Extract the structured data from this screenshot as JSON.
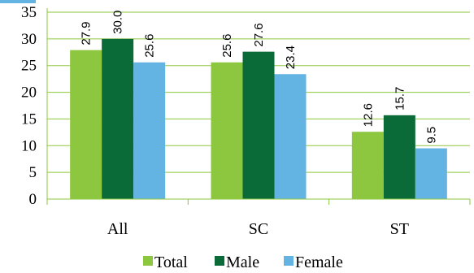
{
  "chart_data": {
    "type": "bar",
    "categories": [
      "All",
      "SC",
      "ST"
    ],
    "series": [
      {
        "name": "Total",
        "values": [
          27.9,
          25.6,
          12.6
        ],
        "color": "#8dc63f"
      },
      {
        "name": "Male",
        "values": [
          30.0,
          27.6,
          15.7
        ],
        "color": "#0b6b38"
      },
      {
        "name": "Female",
        "values": [
          25.6,
          23.4,
          9.5
        ],
        "color": "#63b3e3"
      }
    ],
    "yticks": [
      "0",
      "5",
      "10",
      "15",
      "20",
      "25",
      "30",
      "35"
    ],
    "ylim": [
      0,
      35
    ],
    "grid": true,
    "grid_color": "#8dc63f",
    "axis_color": "#63b3e3",
    "legend_position": "bottom",
    "data_labels_rotated": true,
    "title": "",
    "xlabel": "",
    "ylabel": ""
  }
}
